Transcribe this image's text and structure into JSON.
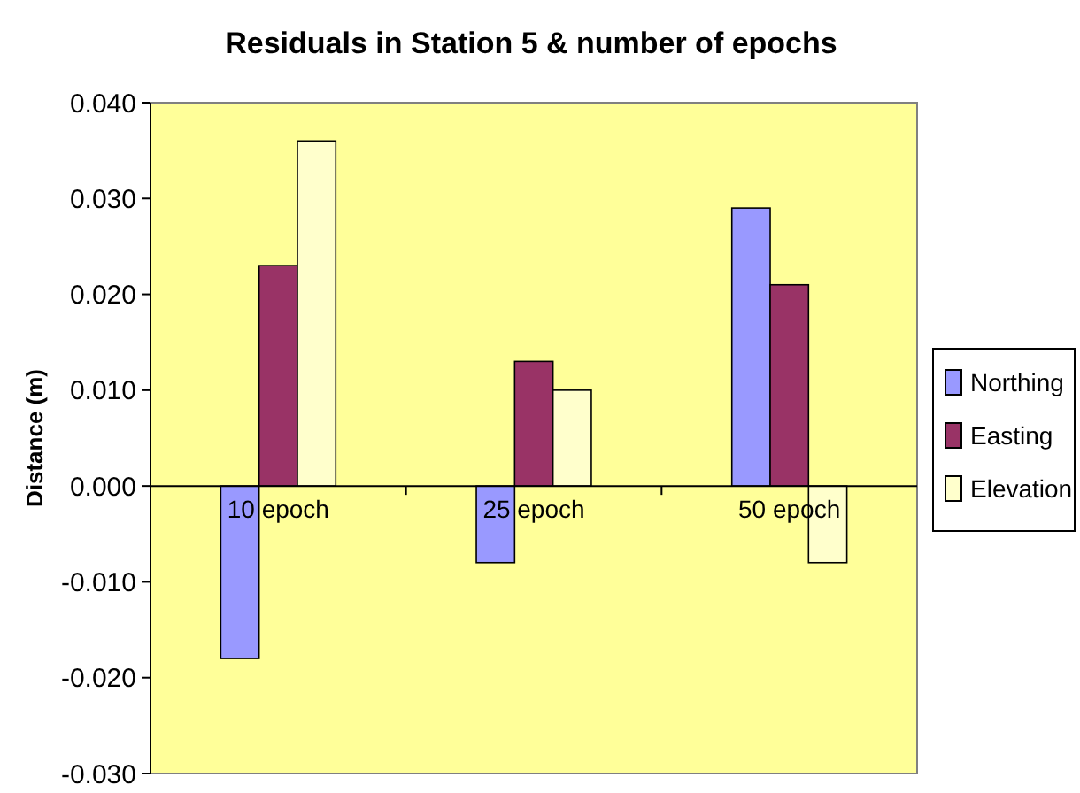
{
  "chart_data": {
    "type": "bar",
    "title": "Residuals in Station 5 & number of epochs",
    "ylabel": "Distance (m)",
    "categories": [
      "10 epoch",
      "25 epoch",
      "50 epoch"
    ],
    "series": [
      {
        "name": "Northing",
        "color": "#9999ff",
        "values": [
          -0.018,
          -0.008,
          0.029
        ]
      },
      {
        "name": "Easting",
        "color": "#993366",
        "values": [
          0.023,
          0.013,
          0.021
        ]
      },
      {
        "name": "Elevation",
        "color": "#ffffcc",
        "values": [
          0.036,
          0.01,
          -0.008
        ]
      }
    ],
    "ylim": [
      -0.03,
      0.04
    ],
    "yticks": [
      {
        "value": -0.03,
        "label": "-0.030"
      },
      {
        "value": -0.02,
        "label": "-0.020"
      },
      {
        "value": -0.01,
        "label": "-0.010"
      },
      {
        "value": 0,
        "label": "0.000"
      },
      {
        "value": 0.01,
        "label": "0.010"
      },
      {
        "value": 0.02,
        "label": "0.020"
      },
      {
        "value": 0.03,
        "label": "0.030"
      },
      {
        "value": 0.04,
        "label": "0.040"
      }
    ],
    "grid": false,
    "legend": "right"
  }
}
